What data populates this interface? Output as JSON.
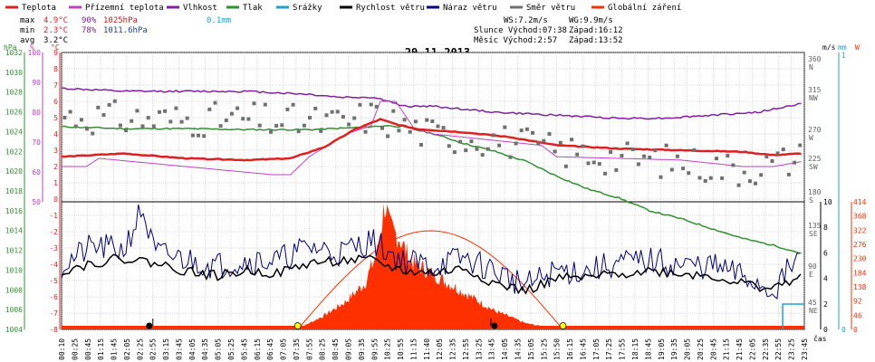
{
  "header": {
    "legend": [
      {
        "label": "Teplota",
        "color": "#e02020"
      },
      {
        "label": "Přízemní teplota",
        "color": "#c040c0"
      },
      {
        "label": "Vlhkost",
        "color": "#8020a0"
      },
      {
        "label": "Tlak",
        "color": "#309030"
      },
      {
        "label": "Srážky",
        "color": "#20a0d0"
      },
      {
        "label": "Rychlost větru",
        "color": "#000000"
      },
      {
        "label": "Náraz větru",
        "color": "#000080"
      },
      {
        "label": "Směr větru",
        "color": "#707070"
      },
      {
        "label": "Globální záření",
        "color": "#ff3000"
      }
    ],
    "stats": {
      "max_label": "max",
      "max_temp": "4.9°C",
      "max_hum": "90%",
      "max_press": "1025hPa",
      "rain": "0.1mm",
      "min_label": "min",
      "min_temp": "2.3°C",
      "min_hum": "78%",
      "min_press": "1011.6hPa",
      "avg_label": "avg",
      "avg_temp": "3.2°C",
      "ws": "WS:7.2m/s",
      "wg": "WG:9.9m/s",
      "sun": "Slunce Východ:07:38",
      "sun_set": "Západ:16:12",
      "moon": "Měsíc  Východ:2:57",
      "moon_set": "Západ:13:52"
    },
    "date": "29.11.2013"
  },
  "chart_data": {
    "type": "line",
    "title": "29.11.2013",
    "x_ticks": [
      "00:10",
      "00:25",
      "00:45",
      "01:15",
      "01:45",
      "02:05",
      "02:25",
      "02:55",
      "03:15",
      "03:45",
      "04:05",
      "04:35",
      "05:05",
      "05:25",
      "05:45",
      "06:15",
      "06:45",
      "07:05",
      "07:35",
      "07:55",
      "08:25",
      "08:45",
      "09:05",
      "09:35",
      "09:55",
      "10:25",
      "10:55",
      "11:15",
      "11:40",
      "12:05",
      "12:35",
      "12:55",
      "13:25",
      "13:45",
      "14:05",
      "14:35",
      "15:05",
      "15:25",
      "15:50",
      "16:15",
      "16:45",
      "17:05",
      "17:25",
      "17:55",
      "18:15",
      "18:45",
      "19:05",
      "19:35",
      "20:05",
      "20:25",
      "20:45",
      "21:15",
      "21:45",
      "22:05",
      "22:35",
      "22:55",
      "23:25",
      "23:45"
    ],
    "x_unit_label": "čas",
    "axes_left": {
      "pressure_hPa": {
        "ticks": [
          "1032",
          "1030",
          "1028",
          "1026",
          "1024",
          "1022",
          "1020",
          "1018",
          "1016",
          "1014",
          "1012",
          "1010",
          "1008",
          "1006",
          "1004"
        ],
        "label": "hPa"
      },
      "humidity_pct": {
        "ticks": [
          "100",
          "90",
          "80",
          "70",
          "60",
          "50"
        ],
        "label": "%"
      },
      "temp_C": {
        "ticks": [
          "9",
          "8",
          "7",
          "6",
          "5",
          "4",
          "3",
          "2",
          "1",
          "0",
          "-1",
          "-2",
          "-3",
          "-4",
          "-5",
          "-6",
          "-7",
          "-8"
        ],
        "label": "°C"
      }
    },
    "axes_right": {
      "wind_dir_deg": {
        "ticks": [
          "360",
          "315",
          "270",
          "225",
          "180",
          "135",
          "90",
          "45"
        ],
        "dirs": [
          "N",
          "NW",
          "W",
          "SW",
          "S",
          "SE",
          "E",
          "NE"
        ]
      },
      "wind_ms": {
        "ticks": [
          "10",
          "8",
          "6",
          "4",
          "2",
          "0"
        ],
        "label": "m/s"
      },
      "rain_mm": {
        "ticks": [
          "1",
          "0"
        ],
        "label": "mm"
      },
      "radiation_W": {
        "ticks": [
          "414",
          "368",
          "322",
          "276",
          "230",
          "184",
          "138",
          "92",
          "46",
          "0"
        ],
        "label": "W"
      }
    },
    "series": [
      {
        "name": "Teplota",
        "unit": "°C",
        "x_hours": [
          0,
          2,
          4,
          6,
          7.4,
          8.5,
          9.5,
          10.3,
          10.8,
          11.5,
          13,
          14.5,
          16,
          18,
          20,
          22,
          23,
          23.9
        ],
        "values": [
          2.6,
          2.8,
          2.5,
          2.4,
          2.5,
          3.2,
          4.3,
          4.9,
          4.6,
          4.3,
          4.1,
          3.8,
          3.3,
          3.1,
          3.0,
          2.9,
          2.7,
          2.8
        ]
      },
      {
        "name": "Přízemní teplota",
        "unit": "°C",
        "x_hours": [
          0,
          0.8,
          1.2,
          6.8,
          7.4,
          8,
          9.2,
          10,
          10.3,
          10.8,
          11.4,
          12,
          14,
          15.5,
          16,
          18,
          20,
          22,
          23,
          23.9
        ],
        "values": [
          2.0,
          2.0,
          2.5,
          1.5,
          1.5,
          2.6,
          4.0,
          4.5,
          6.0,
          6.0,
          4.3,
          4.0,
          3.6,
          3.3,
          2.6,
          2.5,
          2.4,
          2.0,
          2.0,
          2.3
        ]
      },
      {
        "name": "Vlhkost",
        "unit": "%",
        "x_hours": [
          0,
          2,
          4,
          6,
          8,
          9,
          10,
          10.5,
          11,
          12,
          14,
          16,
          18,
          19.5,
          21,
          22.5,
          23.5,
          23.9
        ],
        "values": [
          88,
          87,
          87,
          87,
          86,
          85,
          85,
          84,
          82,
          82,
          80,
          79,
          78,
          78,
          79,
          80,
          82,
          83
        ]
      },
      {
        "name": "Tlak",
        "unit": "hPa",
        "x_hours": [
          0,
          2,
          4,
          6,
          8,
          9.5,
          10.5,
          11,
          12,
          13,
          14,
          15,
          16,
          17,
          18,
          19,
          20,
          21,
          22,
          23,
          23.9
        ],
        "values": [
          1024.5,
          1024.3,
          1024.3,
          1024.2,
          1024.2,
          1024.4,
          1024.6,
          1024.5,
          1023.8,
          1022.8,
          1022,
          1021,
          1019.5,
          1018.2,
          1017.3,
          1016,
          1015.2,
          1014.2,
          1013.2,
          1012.5,
          1011.7
        ]
      },
      {
        "name": "Rychlost větru",
        "unit": "m/s",
        "x_hours": [
          0,
          1,
          2,
          3,
          4,
          5,
          6,
          7,
          8,
          9,
          10,
          11,
          12,
          13,
          14,
          15,
          16,
          17,
          18,
          19,
          20,
          21,
          22,
          23,
          23.9
        ],
        "values": [
          4.6,
          5.2,
          5.6,
          5.2,
          4.6,
          4.2,
          4.6,
          4.4,
          5.2,
          5.4,
          5.4,
          4.6,
          4.4,
          4.8,
          3.6,
          3.0,
          4.0,
          4.0,
          4.4,
          4.6,
          4.4,
          4.2,
          3.6,
          3.2,
          4.2
        ]
      },
      {
        "name": "Náraz větru",
        "unit": "m/s",
        "x_hours": [
          0,
          1,
          2,
          2.6,
          3,
          4,
          5,
          6,
          7,
          8,
          9,
          10,
          11,
          12,
          13,
          14,
          15,
          16,
          17,
          18,
          19,
          20,
          21,
          22,
          23,
          23.9
        ],
        "values": [
          5.0,
          6.5,
          6.2,
          9.5,
          6.0,
          5.5,
          5.0,
          5.4,
          5.4,
          6.5,
          6.0,
          7.0,
          5.4,
          5.0,
          5.6,
          4.6,
          3.4,
          4.6,
          4.6,
          5.2,
          5.4,
          5.0,
          5.0,
          4.2,
          3.0,
          6.0
        ]
      },
      {
        "name": "Globální záření",
        "unit": "W",
        "x_hours": [
          7.6,
          8.5,
          9.2,
          9.8,
          10.2,
          10.45,
          10.6,
          10.9,
          11.3,
          12,
          13,
          14,
          15,
          15.8,
          16.2
        ],
        "values": [
          0,
          46,
          92,
          150,
          250,
          414,
          330,
          300,
          220,
          180,
          120,
          60,
          20,
          5,
          0
        ]
      },
      {
        "name": "Směr větru",
        "unit": "°",
        "x_hours": [
          0,
          3,
          6,
          9,
          10,
          12,
          14,
          16,
          18,
          20,
          22,
          23.9
        ],
        "values": [
          290,
          285,
          285,
          280,
          290,
          265,
          260,
          245,
          235,
          230,
          220,
          235
        ]
      }
    ],
    "markers": {
      "sun_rise_h": 7.63,
      "sun_set_h": 16.2,
      "moon_rise_h": 2.95,
      "moon_set_h": 13.87
    },
    "grid": true
  }
}
